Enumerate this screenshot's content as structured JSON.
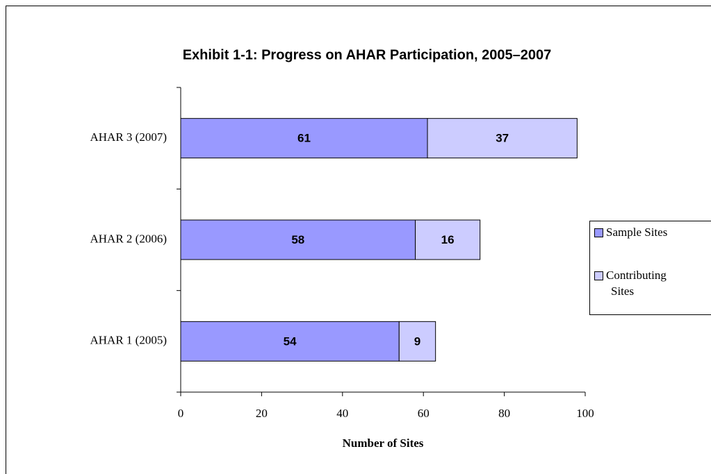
{
  "chart_data": {
    "type": "bar",
    "orientation": "horizontal",
    "stacked": true,
    "title": "Exhibit 1-1: Progress on AHAR Participation, 2005–2007",
    "xlabel": "Number of Sites",
    "categories": [
      "AHAR 1 (2005)",
      "AHAR 2 (2006)",
      "AHAR 3 (2007)"
    ],
    "series": [
      {
        "name": "Sample Sites",
        "color": "#9999ff",
        "values": [
          54,
          58,
          61
        ]
      },
      {
        "name": "Contributing Sites",
        "color": "#ccccff",
        "values": [
          9,
          16,
          37
        ]
      }
    ],
    "xlim": [
      0,
      100
    ],
    "xticks": [
      0,
      20,
      40,
      60,
      80,
      100
    ],
    "legend": "right"
  }
}
